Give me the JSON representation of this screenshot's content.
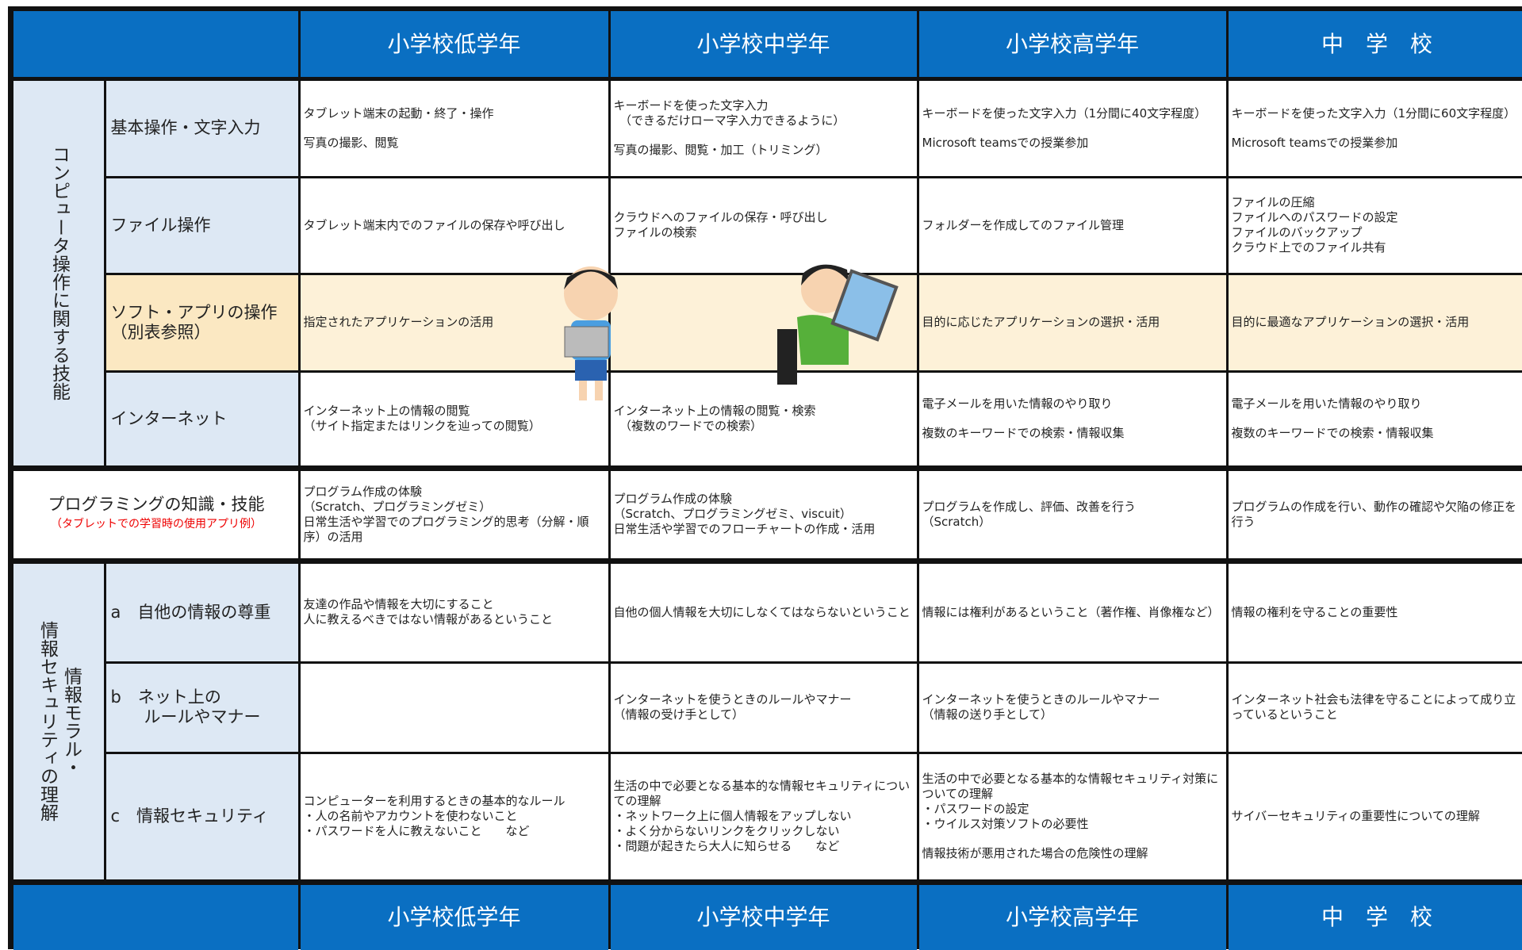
{
  "header": {
    "columns": [
      "小学校低学年",
      "小学校中学年",
      "小学校高学年",
      "中　学　校"
    ]
  },
  "sections": [
    {
      "group": [
        "コンピュータ操作に関する技能"
      ],
      "rows": [
        {
          "label": "基本操作・文字入力",
          "cells": [
            [
              "タブレット端末の起動・終了・操作",
              "写真の撮影、閲覧"
            ],
            [
              "キーボードを使った文字入力\n　（できるだけローマ字入力できるように）",
              "写真の撮影、閲覧・加工（トリミング）"
            ],
            [
              "キーボードを使った文字入力（1分間に40文字程度）",
              "Microsoft teamsでの授業参加"
            ],
            [
              "キーボードを使った文字入力（1分間に60文字程度）",
              "Microsoft teamsでの授業参加"
            ]
          ]
        },
        {
          "label": "ファイル操作",
          "cells": [
            [
              "タブレット端末内でのファイルの保存や呼び出し"
            ],
            [
              "クラウドへのファイルの保存・呼び出し\nファイルの検索"
            ],
            [
              "フォルダーを作成してのファイル管理"
            ],
            [
              "ファイルの圧縮\nファイルへのパスワードの設定\nファイルのバックアップ\nクラウド上でのファイル共有"
            ]
          ]
        },
        {
          "label": "ソフト・アプリの操作\n（別表参照）",
          "cells": [
            [
              "指定されたアプリケーションの活用"
            ],
            [],
            [
              "目的に応じたアプリケーションの選択・活用"
            ],
            [
              "目的に最適なアプリケーションの選択・活用"
            ]
          ]
        },
        {
          "label": "インターネット",
          "cells": [
            [
              "インターネット上の情報の閲覧\n（サイト指定またはリンクを辿っての閲覧）"
            ],
            [
              "インターネット上の情報の閲覧・検索\n　（複数のワードでの検索）"
            ],
            [
              "電子メールを用いた情報のやり取り",
              "複数のキーワードでの検索・情報収集"
            ],
            [
              "電子メールを用いた情報のやり取り",
              "複数のキーワードでの検索・情報収集"
            ]
          ]
        }
      ]
    },
    {
      "label": "プログラミングの知識・技能",
      "note": "（タブレットでの学習時の使用アプリ例）",
      "rows": [
        {
          "cells": [
            [
              "プログラム作成の体験\n（Scratch、プログラミングゼミ）\n日常生活や学習でのプログラミング的思考（分解・順序）の活用"
            ],
            [
              "プログラム作成の体験\n（Scratch、プログラミングゼミ、viscuit）\n日常生活や学習でのフローチャートの作成・活用"
            ],
            [
              "プログラムを作成し、評価、改善を行う\n（Scratch）"
            ],
            [
              "プログラムの作成を行い、動作の確認や欠陥の修正を行う"
            ]
          ]
        }
      ]
    },
    {
      "group": [
        "情報モラル・",
        "情報セキュリティの理解"
      ],
      "rows": [
        {
          "label": "a　自他の情報の尊重",
          "cells": [
            [
              "友達の作品や情報を大切にすること\n人に教えるべきではない情報があるということ"
            ],
            [
              "自他の個人情報を大切にしなくてはならないということ"
            ],
            [
              "情報には権利があるということ（著作権、肖像権など）"
            ],
            [
              "情報の権利を守ることの重要性"
            ]
          ]
        },
        {
          "label": "b　ネット上の\n　　ルールやマナー",
          "cells": [
            [],
            [
              "インターネットを使うときのルールやマナー\n（情報の受け手として）"
            ],
            [
              "インターネットを使うときのルールやマナー\n（情報の送り手として）"
            ],
            [
              "インターネット社会も法律を守ることによって成り立っているということ"
            ]
          ]
        },
        {
          "label": "c　情報セキュリティ",
          "cells": [
            [
              "コンピューターを利用するときの基本的なルール\n・人の名前やアカウントを使わないこと\n・パスワードを人に教えないこと　　など"
            ],
            [
              "生活の中で必要となる基本的な情報セキュリティについての理解\n・ネットワーク上に個人情報をアップしない\n・よく分からないリンクをクリックしない\n・問題が起きたら大人に知らせる　　など"
            ],
            [
              "生活の中で必要となる基本的な情報セキュリティ対策についての理解\n・パスワードの設定\n・ウイルス対策ソフトの必要性",
              "情報技術が悪用された場合の危険性の理解"
            ],
            [
              "サイバーセキュリティの重要性についての理解"
            ]
          ]
        }
      ]
    }
  ]
}
